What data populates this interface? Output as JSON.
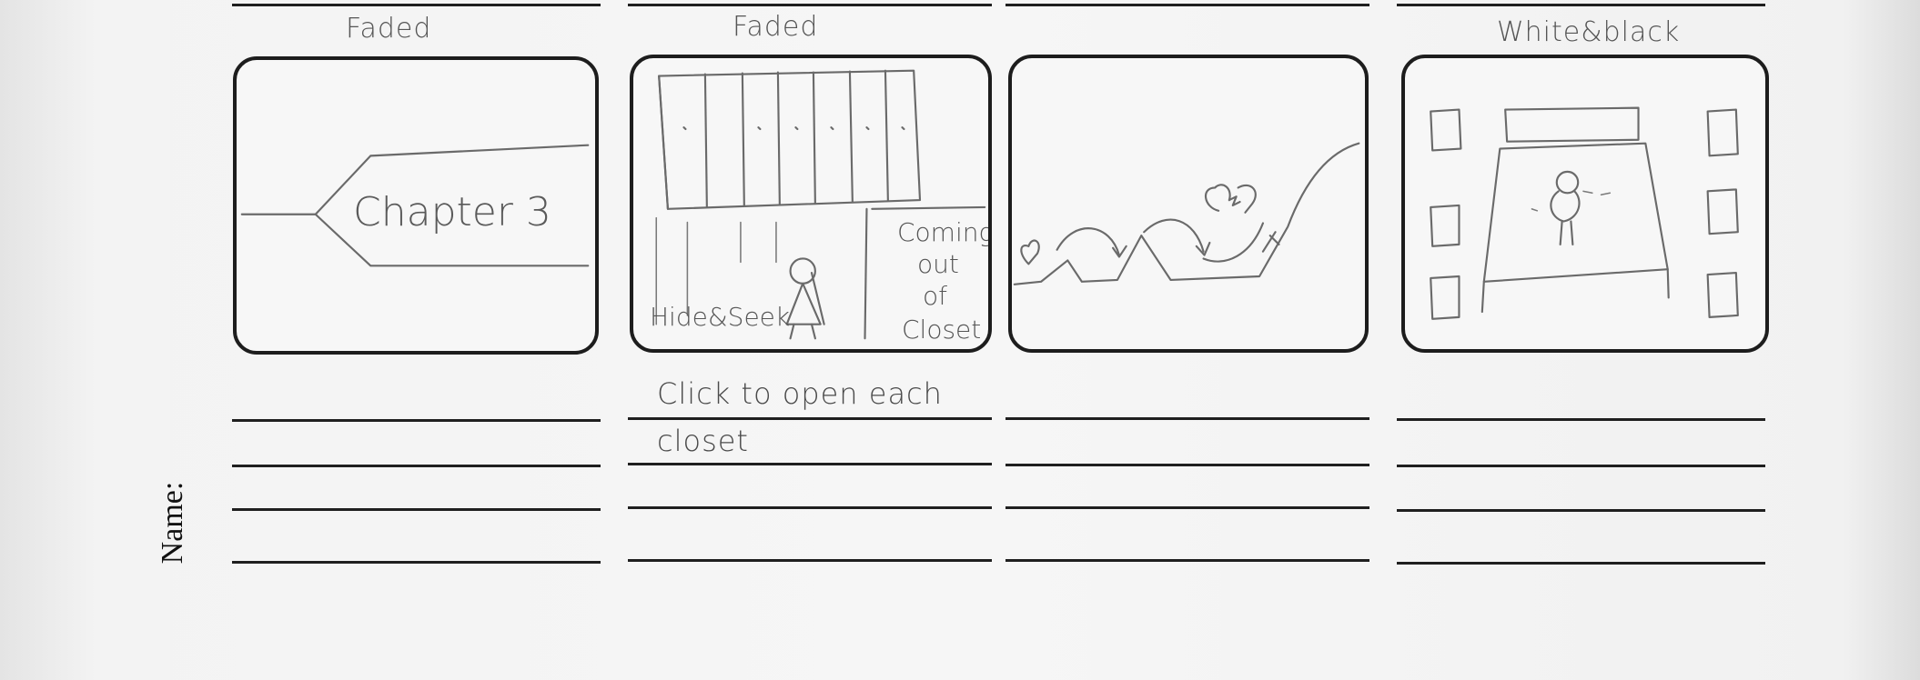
{
  "form": {
    "name_label": "Name:"
  },
  "panels": [
    {
      "top_note": "Faded",
      "sketch_text": [
        "Chapter 3"
      ],
      "notes": []
    },
    {
      "top_note": "Faded",
      "sketch_text": [
        "Hide&Seek",
        "Coming",
        "out",
        "of",
        "Closet"
      ],
      "notes": [
        "Click to open each",
        "closet"
      ]
    },
    {
      "top_note": "",
      "sketch_text": [],
      "notes": []
    },
    {
      "top_note": "White&black",
      "sketch_text": [],
      "notes": []
    }
  ]
}
